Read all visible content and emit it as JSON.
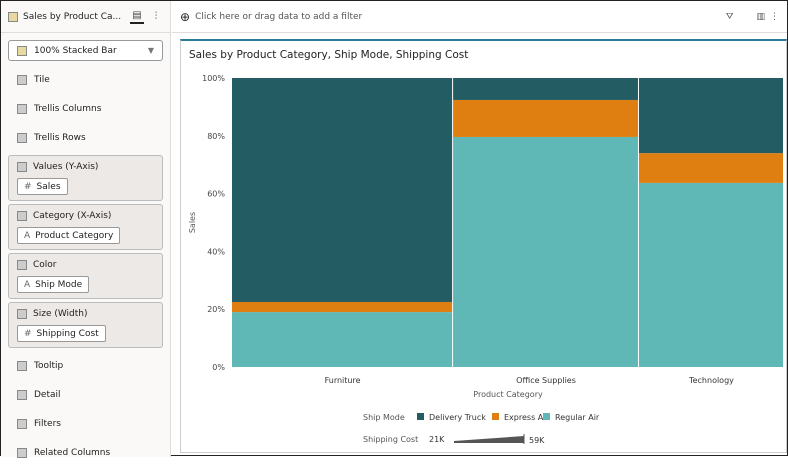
{
  "left": {
    "title": "Sales by Product Ca...",
    "chart_type": "100% Stacked Bar",
    "rows": [
      "Tile",
      "Trellis Columns",
      "Trellis Rows"
    ],
    "boxes": [
      {
        "label": "Values (Y-Axis)",
        "pill": "Sales",
        "pill_icon": "#"
      },
      {
        "label": "Category (X-Axis)",
        "pill": "Product Category",
        "pill_icon": "A"
      },
      {
        "label": "Color",
        "pill": "Ship Mode",
        "pill_icon": "A"
      },
      {
        "label": "Size (Width)",
        "pill": "Shipping Cost",
        "pill_icon": "#"
      }
    ],
    "rows2": [
      "Tooltip",
      "Detail",
      "Filters",
      "Related Columns"
    ]
  },
  "filter_bar": {
    "placeholder": "Click here or drag data to add a filter"
  },
  "chart_data": {
    "type": "bar",
    "stacked": "100%",
    "title": "Sales by Product Category, Ship Mode, Shipping Cost",
    "xlabel": "Product Category",
    "ylabel": "Sales",
    "yticks": [
      "0%",
      "20%",
      "40%",
      "60%",
      "80%",
      "100%"
    ],
    "ylim": [
      0,
      100
    ],
    "categories": [
      "Furniture",
      "Office Supplies",
      "Technology"
    ],
    "width_values_shipping_cost": [
      59000,
      49600,
      38700
    ],
    "series": [
      {
        "name": "Regular Air",
        "color": "#5fb8b5",
        "values": [
          19,
          79.6,
          63.7
        ]
      },
      {
        "name": "Express Air",
        "color": "#df7f12",
        "values": [
          3.5,
          12.8,
          10.3
        ]
      },
      {
        "name": "Delivery Truck",
        "color": "#245c63",
        "values": [
          77.5,
          7.6,
          26
        ]
      }
    ],
    "legend": {
      "color_title": "Ship Mode",
      "order": [
        "Delivery Truck",
        "Express Air",
        "Regular Air"
      ],
      "size_title": "Shipping Cost",
      "size_min": "21K",
      "size_max": "59K"
    }
  }
}
